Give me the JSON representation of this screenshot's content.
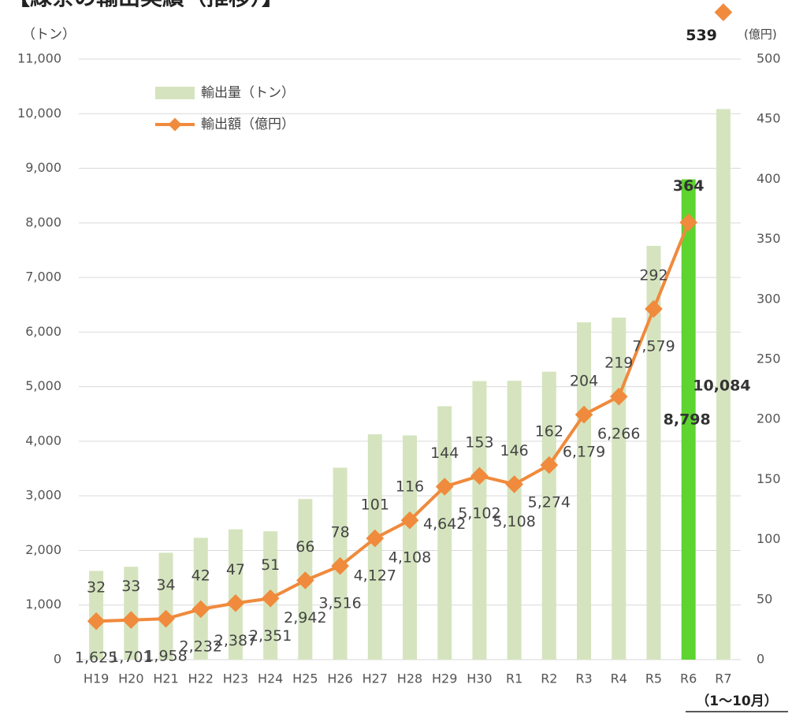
{
  "chart_data": {
    "type": "combo",
    "title": "【緑茶の輸出実績（推移）】",
    "y_label": "（トン）",
    "y2_label": "(億円)",
    "annotation": "（1～10月）",
    "categories": [
      "H19",
      "H20",
      "H21",
      "H22",
      "H23",
      "H24",
      "H25",
      "H26",
      "H27",
      "H28",
      "H29",
      "H30",
      "R1",
      "R2",
      "R3",
      "R4",
      "R5",
      "R6",
      "R7"
    ],
    "series": [
      {
        "name": "輸出量（トン）",
        "type": "bar",
        "color": "#d5e4be",
        "colors": [
          "#d5e4be",
          "#d5e4be",
          "#d5e4be",
          "#d5e4be",
          "#d5e4be",
          "#d5e4be",
          "#d5e4be",
          "#d5e4be",
          "#d5e4be",
          "#d5e4be",
          "#d5e4be",
          "#d5e4be",
          "#d5e4be",
          "#d5e4be",
          "#d5e4be",
          "#d5e4be",
          "#d5e4be",
          "#5dd42f",
          "#d5e4be"
        ],
        "values": [
          1625,
          1701,
          1958,
          2232,
          2387,
          2351,
          2942,
          3516,
          4127,
          4108,
          4642,
          5102,
          5108,
          5274,
          6179,
          6266,
          7579,
          8798,
          10084
        ],
        "value_labels": [
          "1,625",
          "1,701",
          "1,958",
          "2,232",
          "2,387",
          "2,351",
          "2,942",
          "3,516",
          "4,127",
          "4,108",
          "4,642",
          "5,102",
          "5,108",
          "5,274",
          "6,179",
          "6,266",
          "7,579",
          "8,798",
          "10,084"
        ]
      },
      {
        "name": "輸出額（億円）",
        "type": "line",
        "axis": "y2",
        "color": "#f08a3c",
        "values": [
          32,
          33,
          34,
          42,
          47,
          51,
          66,
          78,
          101,
          116,
          144,
          153,
          146,
          162,
          204,
          219,
          292,
          364,
          539
        ]
      }
    ],
    "ylim": [
      0,
      11000
    ],
    "yticks": [
      0,
      {
        "value": 1000,
        "label": "1,000"
      },
      {
        "value": 2000,
        "label": "2,000"
      },
      {
        "value": 3000,
        "label": "3,000"
      },
      {
        "value": 4000,
        "label": "4,000"
      },
      {
        "value": 5000,
        "label": "5,000"
      },
      {
        "value": 6000,
        "label": "6,000"
      },
      {
        "value": 7000,
        "label": "7,000"
      },
      {
        "value": 8000,
        "label": "8,000"
      },
      {
        "value": 9000,
        "label": "9,000"
      },
      {
        "value": 10000,
        "label": "10,000"
      },
      {
        "value": 11000,
        "label": "11,000"
      }
    ],
    "y2lim": [
      0,
      500
    ],
    "y2ticks": [
      0,
      50,
      100,
      150,
      200,
      250,
      300,
      350,
      400,
      450,
      500
    ],
    "grid": true,
    "legend": "upper left"
  }
}
